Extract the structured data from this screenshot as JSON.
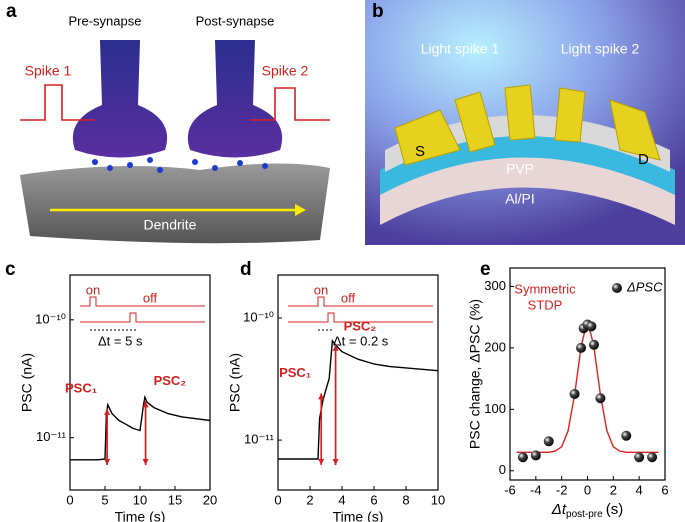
{
  "panel_a": {
    "letter": "a",
    "pre": "Pre-synapse",
    "post": "Post-synapse",
    "spike1": "Spike 1",
    "spike2": "Spike 2",
    "dendrite": "Dendrite"
  },
  "panel_b": {
    "letter": "b",
    "light1": "Light spike 1",
    "light2": "Light spike 2",
    "s": "S",
    "d": "D",
    "pvp": "PVP",
    "sub": "Al/PI"
  },
  "chart_data": [
    {
      "type": "line",
      "letter": "c",
      "xlabel": "Time (s)",
      "ylabel": "PSC (nA)",
      "log_y": true,
      "xlim": [
        0,
        20
      ],
      "xticks": [
        0,
        5,
        10,
        15,
        20
      ],
      "ylim": [
        3.6e-12,
        2.4e-10
      ],
      "yticks": [
        {
          "value": 1e-11,
          "label": "10⁻¹¹"
        },
        {
          "value": 1e-10,
          "label": "10⁻¹⁰"
        }
      ],
      "annotations": [
        "PSC₁",
        "PSC₂"
      ],
      "inset": {
        "on": "on",
        "off": "off",
        "dt": "Δt = 5 s"
      },
      "series": [
        {
          "color": "#000000",
          "x": [
            0,
            1,
            2,
            3,
            4,
            5,
            5.2,
            5.4,
            6,
            7,
            8,
            9,
            10,
            10.5,
            10.7,
            11,
            12,
            14,
            16,
            18,
            20
          ],
          "values": [
            6.5e-12,
            6.5e-12,
            6.5e-12,
            6.5e-12,
            6.5e-12,
            6.6e-12,
            1.6e-11,
            1.9e-11,
            1.6e-11,
            1.4e-11,
            1.3e-11,
            1.2e-11,
            1.15e-11,
            1.9e-11,
            2.2e-11,
            2e-11,
            1.8e-11,
            1.6e-11,
            1.5e-11,
            1.45e-11,
            1.4e-11
          ]
        }
      ]
    },
    {
      "type": "line",
      "letter": "d",
      "xlabel": "Time (s)",
      "ylabel": "PSC (nA)",
      "log_y": true,
      "xlim": [
        0,
        10
      ],
      "xticks": [
        0,
        2,
        4,
        6,
        8,
        10
      ],
      "ylim": [
        3.9e-12,
        2.25e-10
      ],
      "yticks": [
        {
          "value": 1e-11,
          "label": "10⁻¹¹"
        },
        {
          "value": 1e-10,
          "label": "10⁻¹⁰"
        }
      ],
      "annotations": [
        "PSC₁",
        "PSC₂"
      ],
      "inset": {
        "on": "on",
        "off": "off",
        "dt": "Δt = 0.2 s"
      },
      "series": [
        {
          "color": "#000000",
          "x": [
            0,
            1,
            2,
            2.5,
            2.6,
            2.8,
            3.0,
            3.2,
            3.4,
            3.6,
            4,
            5,
            6,
            7,
            8,
            9,
            10
          ],
          "values": [
            7e-12,
            7e-12,
            7e-12,
            7e-12,
            1.5e-11,
            2.1e-11,
            2.6e-11,
            3.2e-11,
            6.5e-11,
            6e-11,
            5.3e-11,
            4.6e-11,
            4.2e-11,
            4e-11,
            3.9e-11,
            3.8e-11,
            3.7e-11
          ]
        }
      ]
    },
    {
      "type": "scatter",
      "letter": "e",
      "xlabel": "Δt",
      "xlabel_sub": "post-pre",
      "xlabel_unit": "(s)",
      "ylabel": "PSC change, ΔPSC (%)",
      "annotation": [
        "Symmetric",
        "STDP"
      ],
      "xlim": [
        -6,
        6
      ],
      "xticks": [
        -6,
        -4,
        -2,
        0,
        2,
        4,
        6
      ],
      "ylim": [
        -15,
        330
      ],
      "yticks": [
        0,
        100,
        200,
        300
      ],
      "legend": "upper right",
      "series": [
        {
          "name": "ΔPSC",
          "color": "#000000",
          "x": [
            -5,
            -4,
            -3,
            -1,
            -0.5,
            -0.3,
            0,
            0.3,
            0.5,
            1,
            3,
            4,
            5
          ],
          "values": [
            22,
            25,
            48,
            125,
            200,
            232,
            238,
            235,
            205,
            118,
            57,
            22,
            22
          ]
        },
        {
          "color": "#e02020",
          "x": [
            -5.5,
            -3,
            -2.5,
            -2,
            -1.5,
            -1,
            -0.75,
            -0.5,
            -0.25,
            0,
            0.25,
            0.5,
            0.75,
            1,
            1.5,
            2,
            2.5,
            3,
            5.5
          ],
          "values": [
            30,
            30,
            32,
            39,
            65,
            124,
            162,
            201,
            224,
            235,
            224,
            201,
            162,
            124,
            65,
            39,
            32,
            30,
            30
          ]
        }
      ]
    }
  ]
}
